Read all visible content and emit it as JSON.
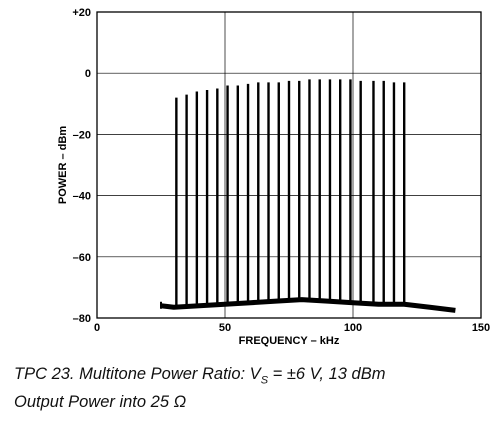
{
  "chart_data": {
    "type": "line",
    "xlabel": "FREQUENCY – kHz",
    "ylabel": "POWER – dBm",
    "xlim": [
      0,
      150
    ],
    "ylim": [
      -80,
      20
    ],
    "x_ticks": [
      "0",
      "50",
      "100",
      "150"
    ],
    "y_ticks": [
      "+20",
      "0",
      "–20",
      "–40",
      "–60",
      "–80"
    ],
    "x_tick_values": [
      0,
      50,
      100,
      150
    ],
    "y_tick_values": [
      20,
      0,
      -20,
      -40,
      -60,
      -80
    ],
    "grid": true,
    "noise_floor": {
      "x": [
        25,
        30,
        40,
        50,
        60,
        70,
        80,
        90,
        100,
        110,
        120,
        130,
        140
      ],
      "y": [
        -76,
        -76.5,
        -76,
        -75.5,
        -75,
        -74.5,
        -74,
        -74.5,
        -75,
        -75.5,
        -75.5,
        -76.5,
        -77.5
      ]
    },
    "tones": {
      "x": [
        31,
        35,
        39,
        43,
        47,
        51,
        55,
        59,
        63,
        67,
        71,
        75,
        79,
        83,
        87,
        91,
        95,
        99,
        103,
        108,
        112,
        116,
        120
      ],
      "y": [
        -8,
        -7,
        -6,
        -5.5,
        -5,
        -4,
        -4,
        -3.5,
        -3,
        -3,
        -3,
        -2.5,
        -2.5,
        -2,
        -2,
        -2,
        -2,
        -2,
        -2.5,
        -2.5,
        -2.5,
        -3,
        -3
      ]
    }
  },
  "caption": {
    "line1_a": "TPC 23.  Multitone Power Ratio: V",
    "line1_sub": "S",
    "line1_b": " = ±6 V, 13 dBm",
    "line2": "Output Power into 25 Ω"
  }
}
